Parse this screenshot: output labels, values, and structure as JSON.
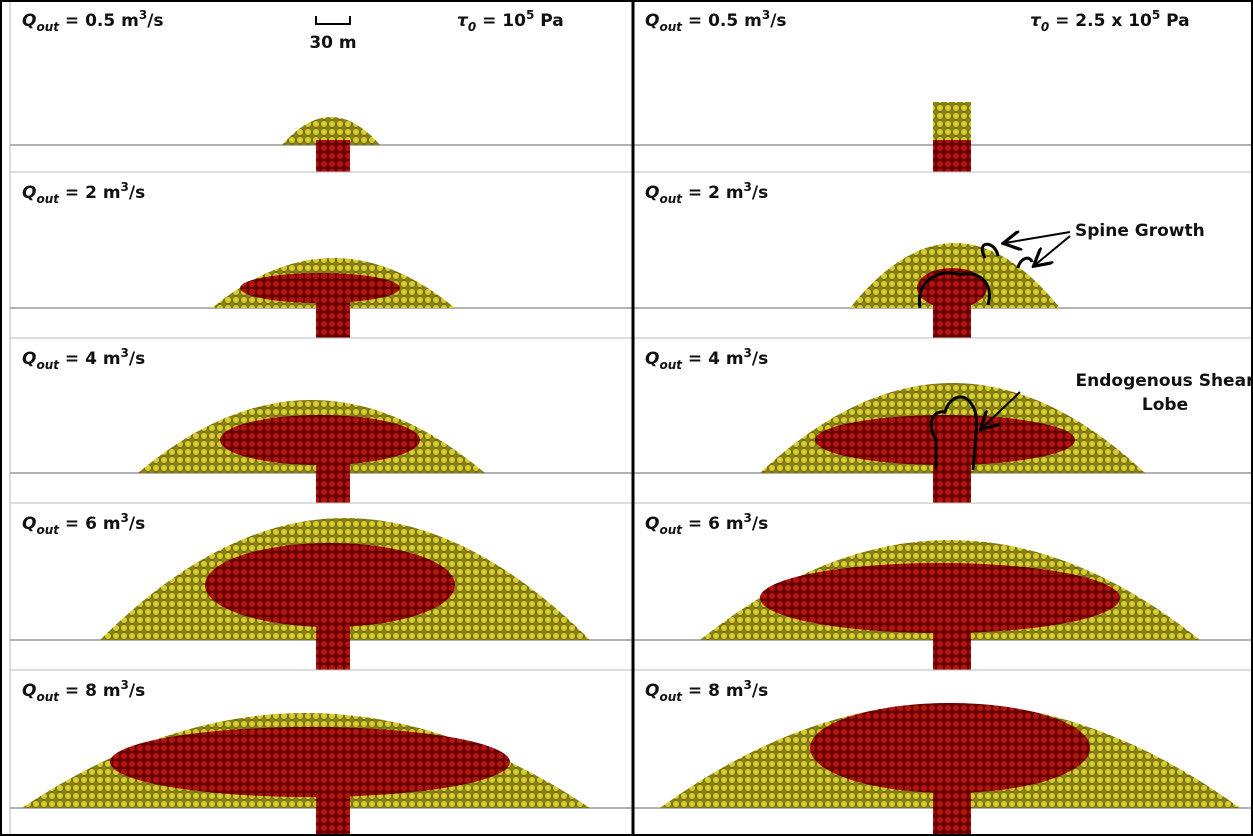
{
  "columns": [
    {
      "stress": {
        "symbol": "τ",
        "subscript": "0",
        "text": " = 10",
        "exponent": "5",
        "unit": " Pa"
      },
      "scale_bar": "30 m",
      "panels": [
        {
          "flow": {
            "symbol": "Q",
            "subscript": "out",
            "text": " = 0.5 m",
            "exponent": "3",
            "unit": "/s"
          }
        },
        {
          "flow": {
            "symbol": "Q",
            "subscript": "out",
            "text": " = 2 m",
            "exponent": "3",
            "unit": "/s"
          }
        },
        {
          "flow": {
            "symbol": "Q",
            "subscript": "out",
            "text": " = 4 m",
            "exponent": "3",
            "unit": "/s"
          }
        },
        {
          "flow": {
            "symbol": "Q",
            "subscript": "out",
            "text": " = 6 m",
            "exponent": "3",
            "unit": "/s"
          }
        },
        {
          "flow": {
            "symbol": "Q",
            "subscript": "out",
            "text": " = 8 m",
            "exponent": "3",
            "unit": "/s"
          }
        }
      ]
    },
    {
      "stress": {
        "symbol": "τ",
        "subscript": "0",
        "text": " = 2.5 x 10",
        "exponent": "5",
        "unit": " Pa"
      },
      "panels": [
        {
          "flow": {
            "symbol": "Q",
            "subscript": "out",
            "text": " = 0.5 m",
            "exponent": "3",
            "unit": "/s"
          }
        },
        {
          "flow": {
            "symbol": "Q",
            "subscript": "out",
            "text": " = 2 m",
            "exponent": "3",
            "unit": "/s"
          },
          "annotation": [
            "Spine Growth"
          ]
        },
        {
          "flow": {
            "symbol": "Q",
            "subscript": "out",
            "text": " = 4 m",
            "exponent": "3",
            "unit": "/s"
          },
          "annotation": [
            "Endogenous Shear",
            "Lobe"
          ]
        },
        {
          "flow": {
            "symbol": "Q",
            "subscript": "out",
            "text": " = 6 m",
            "exponent": "3",
            "unit": "/s"
          }
        },
        {
          "flow": {
            "symbol": "Q",
            "subscript": "out",
            "text": " = 8 m",
            "exponent": "3",
            "unit": "/s"
          }
        }
      ]
    }
  ]
}
